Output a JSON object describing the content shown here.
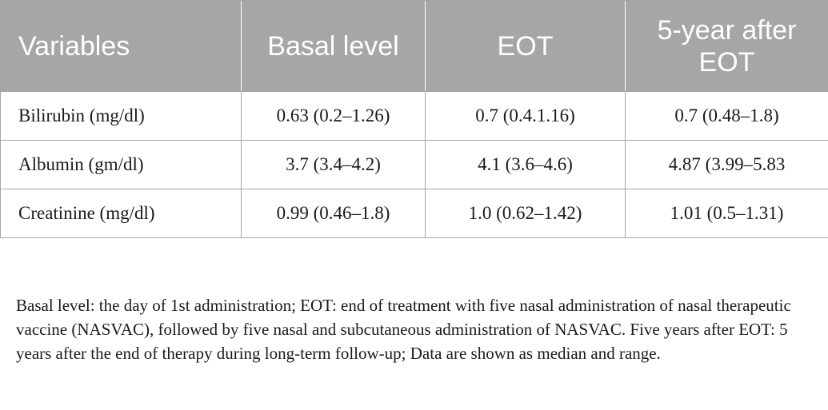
{
  "table": {
    "headers": [
      "Variables",
      "Basal level",
      "EOT",
      "5-year after EOT"
    ],
    "rows": [
      [
        "Bilirubin (mg/dl)",
        "0.63 (0.2–1.26)",
        "0.7 (0.4.1.16)",
        "0.7 (0.48–1.8)"
      ],
      [
        "Albumin (gm/dl)",
        "3.7 (3.4–4.2)",
        "4.1 (3.6–4.6)",
        "4.87 (3.99–5.83"
      ],
      [
        "Creatinine (mg/dl)",
        "0.99 (0.46–1.8)",
        "1.0 (0.62–1.42)",
        "1.01 (0.5–1.31)"
      ]
    ]
  },
  "footnote": "Basal level: the day of 1st administration; EOT: end of treatment with five nasal administration of nasal therapeutic vaccine (NASVAC), followed by five nasal and subcutaneous administration of NASVAC. Five years after EOT: 5 years after the end of therapy during long-term follow-up; Data are shown as median and range."
}
